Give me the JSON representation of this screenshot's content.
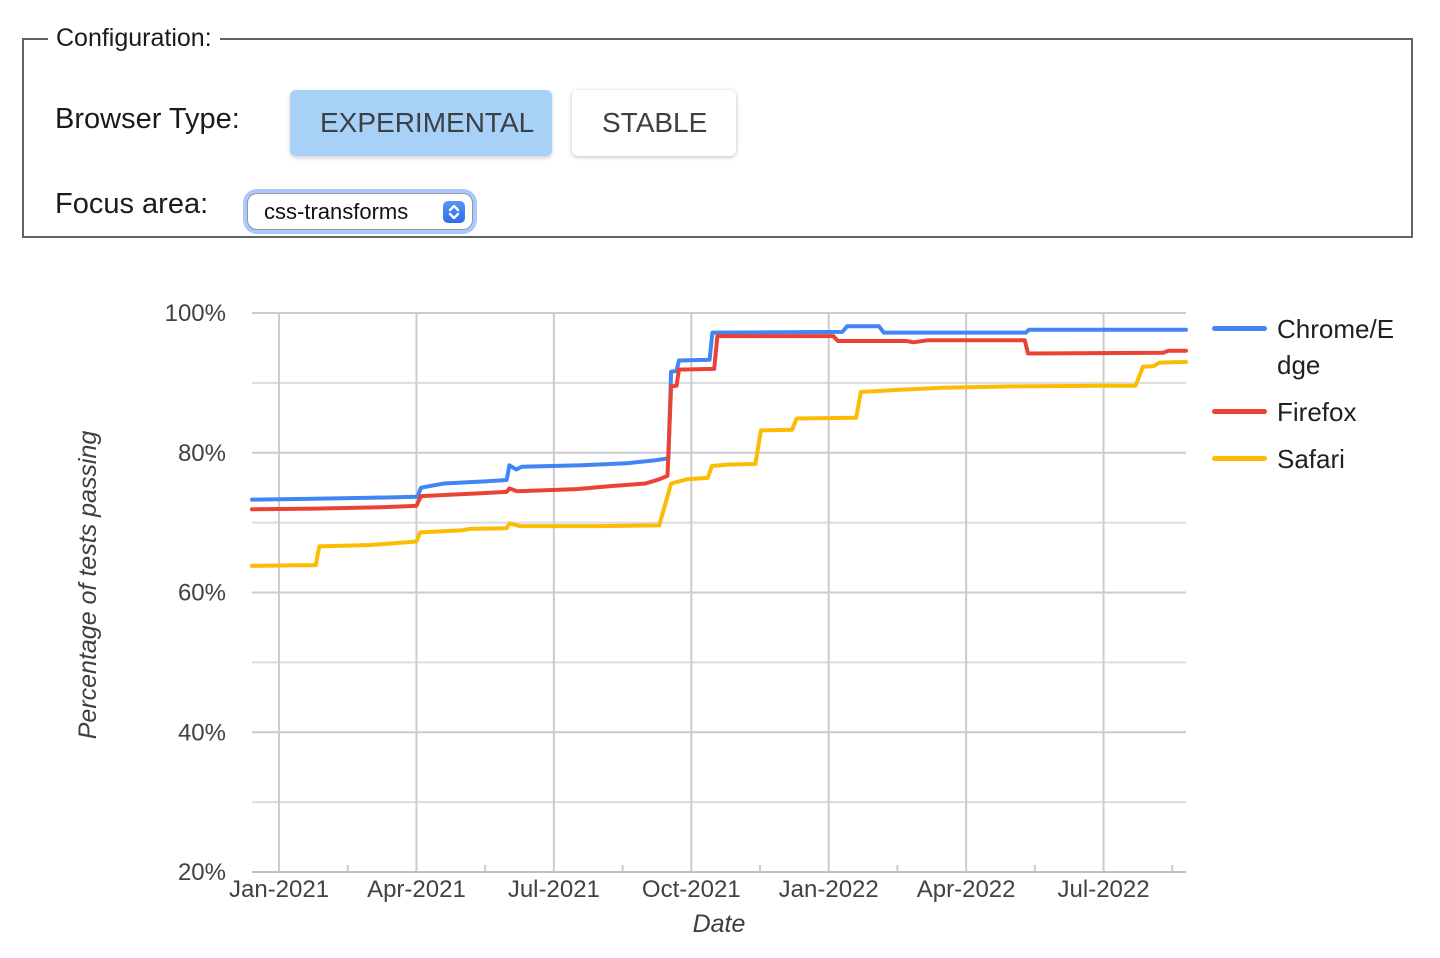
{
  "config": {
    "legend": "Configuration:",
    "browser_type_label": "Browser Type:",
    "buttons": [
      {
        "label": "EXPERIMENTAL",
        "selected": true
      },
      {
        "label": "STABLE",
        "selected": false
      }
    ],
    "focus_area_label": "Focus area:",
    "focus_area": {
      "value": "css-transforms"
    }
  },
  "colors": {
    "selected_button_bg": "#a8d1f7",
    "gridline_major": "#cccccc",
    "gridline_minor": "#dcdcdc",
    "axis_line": "#c0c0c0",
    "axis_text": "#424242"
  },
  "chart_data": {
    "type": "line",
    "title": "",
    "xlabel": "Date",
    "ylabel": "Percentage of tests passing",
    "x_unit": "months since Jan-2021",
    "x_range": [
      -0.59,
      19.8
    ],
    "ylim": [
      20,
      100
    ],
    "y_grid_step": 10,
    "y_label_step": 20,
    "grid": true,
    "legend_position": "right",
    "y_ticks": [
      {
        "v": 20,
        "label": "20%"
      },
      {
        "v": 40,
        "label": "40%"
      },
      {
        "v": 60,
        "label": "60%"
      },
      {
        "v": 80,
        "label": "80%"
      },
      {
        "v": 100,
        "label": "100%"
      }
    ],
    "x_ticks": [
      {
        "m": 0,
        "label": "Jan-2021"
      },
      {
        "m": 3,
        "label": "Apr-2021"
      },
      {
        "m": 6,
        "label": "Jul-2021"
      },
      {
        "m": 9,
        "label": "Oct-2021"
      },
      {
        "m": 12,
        "label": "Jan-2022"
      },
      {
        "m": 15,
        "label": "Apr-2022"
      },
      {
        "m": 18,
        "label": "Jul-2022"
      }
    ],
    "x_minor_tick_step": 1.5,
    "series": [
      {
        "name": "Chrome/Edge",
        "color": "#4285F4",
        "points": [
          [
            -0.59,
            73.3
          ],
          [
            0.6,
            73.4
          ],
          [
            2.0,
            73.55
          ],
          [
            3.02,
            73.7
          ],
          [
            3.1,
            75.0
          ],
          [
            3.6,
            75.6
          ],
          [
            4.5,
            75.9
          ],
          [
            4.97,
            76.1
          ],
          [
            5.03,
            78.2
          ],
          [
            5.18,
            77.6
          ],
          [
            5.3,
            78.0
          ],
          [
            6.6,
            78.2
          ],
          [
            7.6,
            78.5
          ],
          [
            8.2,
            78.9
          ],
          [
            8.5,
            79.2
          ],
          [
            8.56,
            91.6
          ],
          [
            8.68,
            91.7
          ],
          [
            8.73,
            93.2
          ],
          [
            9.4,
            93.3
          ],
          [
            9.46,
            97.2
          ],
          [
            12.3,
            97.3
          ],
          [
            12.4,
            98.1
          ],
          [
            13.1,
            98.1
          ],
          [
            13.2,
            97.2
          ],
          [
            16.3,
            97.2
          ],
          [
            16.37,
            97.6
          ],
          [
            19.8,
            97.6
          ]
        ]
      },
      {
        "name": "Firefox",
        "color": "#EA4335",
        "points": [
          [
            -0.59,
            71.9
          ],
          [
            0.8,
            72.0
          ],
          [
            2.2,
            72.2
          ],
          [
            3.0,
            72.4
          ],
          [
            3.1,
            73.8
          ],
          [
            4.4,
            74.2
          ],
          [
            4.97,
            74.4
          ],
          [
            5.03,
            74.9
          ],
          [
            5.2,
            74.5
          ],
          [
            6.5,
            74.8
          ],
          [
            7.2,
            75.2
          ],
          [
            8.0,
            75.6
          ],
          [
            8.3,
            76.2
          ],
          [
            8.48,
            76.7
          ],
          [
            8.56,
            89.5
          ],
          [
            8.68,
            89.6
          ],
          [
            8.73,
            91.9
          ],
          [
            9.5,
            92.0
          ],
          [
            9.57,
            96.7
          ],
          [
            12.1,
            96.7
          ],
          [
            12.2,
            96.0
          ],
          [
            13.7,
            96.0
          ],
          [
            13.85,
            95.8
          ],
          [
            14.15,
            96.1
          ],
          [
            16.28,
            96.1
          ],
          [
            16.35,
            94.2
          ],
          [
            19.3,
            94.3
          ],
          [
            19.42,
            94.6
          ],
          [
            19.8,
            94.6
          ]
        ]
      },
      {
        "name": "Safari",
        "color": "#FBBC04",
        "points": [
          [
            -0.59,
            63.8
          ],
          [
            0.4,
            63.9
          ],
          [
            0.8,
            63.9
          ],
          [
            0.88,
            66.6
          ],
          [
            2.0,
            66.8
          ],
          [
            3.0,
            67.3
          ],
          [
            3.08,
            68.6
          ],
          [
            4.0,
            68.9
          ],
          [
            4.15,
            69.1
          ],
          [
            4.97,
            69.2
          ],
          [
            5.03,
            69.9
          ],
          [
            5.25,
            69.5
          ],
          [
            7.0,
            69.5
          ],
          [
            8.3,
            69.6
          ],
          [
            8.56,
            75.6
          ],
          [
            8.9,
            76.2
          ],
          [
            9.36,
            76.4
          ],
          [
            9.45,
            78.1
          ],
          [
            9.8,
            78.3
          ],
          [
            10.4,
            78.4
          ],
          [
            10.52,
            83.2
          ],
          [
            11.2,
            83.3
          ],
          [
            11.3,
            84.9
          ],
          [
            12.6,
            85.0
          ],
          [
            12.7,
            88.7
          ],
          [
            13.5,
            89.0
          ],
          [
            14.5,
            89.3
          ],
          [
            16.0,
            89.5
          ],
          [
            18.0,
            89.6
          ],
          [
            18.7,
            89.6
          ],
          [
            18.86,
            92.3
          ],
          [
            19.1,
            92.4
          ],
          [
            19.22,
            92.9
          ],
          [
            19.8,
            93.0
          ]
        ]
      }
    ]
  }
}
